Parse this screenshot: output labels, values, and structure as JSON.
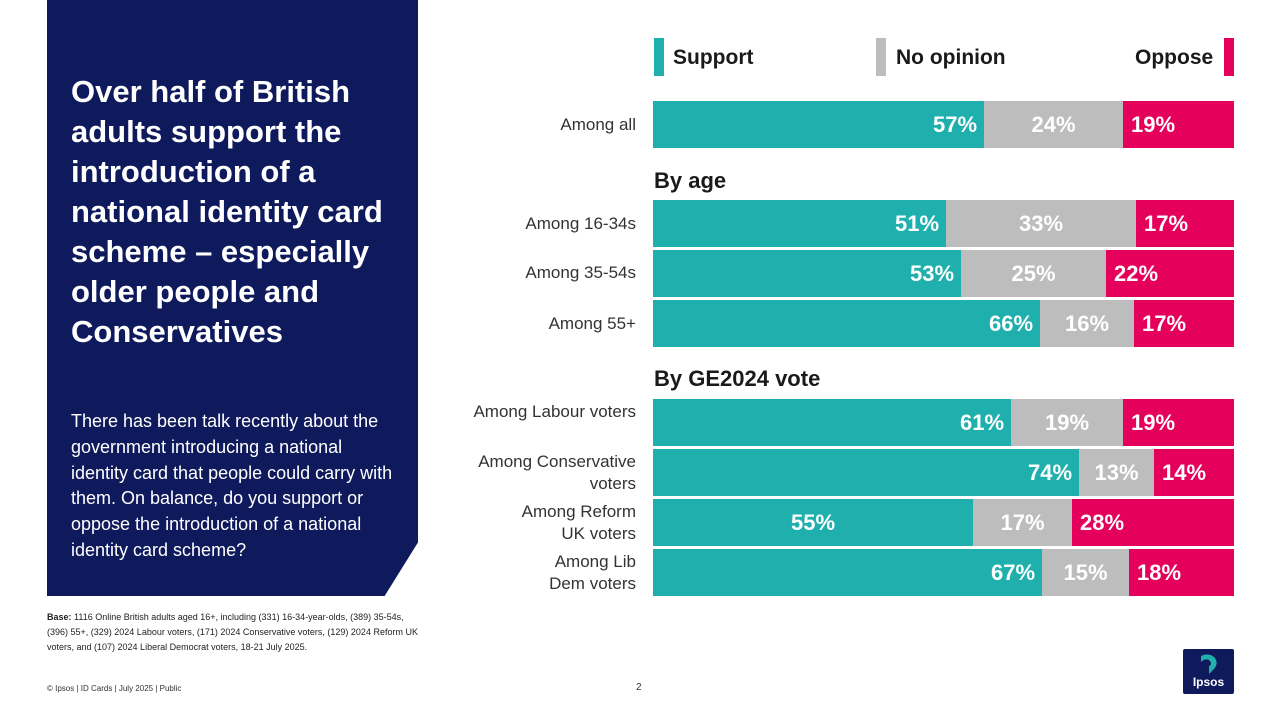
{
  "headline": "Over half of British adults support the introduction of a national identity card scheme – especially older people and Conservatives",
  "question": "There has been talk recently about the government introducing a national identity card that people could carry with them. On balance, do you support or oppose the introduction of a national identity card scheme?",
  "base": {
    "label": "Base:",
    "text": " 1116 Online British adults aged 16+, including (331) 16-34-year-olds, (389) 35-54s, (396) 55+, (329) 2024 Labour voters, (171) 2024 Conservative voters, (129) 2024 Reform UK voters, and (107) 2024 Liberal Democrat voters, 18-21 July 2025."
  },
  "footer": "© Ipsos | ID Cards | July 2025 | Public",
  "page_number": "2",
  "logo_text": "Ipsos",
  "colors": {
    "support": "#1fb0ae",
    "no_opinion": "#bdbdbd",
    "oppose": "#e5005b",
    "navy": "#0f1a5c"
  },
  "chart_data": {
    "type": "bar",
    "orientation": "horizontal",
    "stacked": true,
    "percent_labels": true,
    "series_names": [
      "Support",
      "No opinion",
      "Oppose"
    ],
    "legend": {
      "support": "Support",
      "no_opinion": "No opinion",
      "oppose": "Oppose"
    },
    "sections": [
      "By age",
      "By GE2024 vote"
    ],
    "rows": [
      {
        "label": "Among all",
        "support": 57,
        "no_opinion": 24,
        "oppose": 19
      },
      {
        "label": "Among 16-34s",
        "support": 51,
        "no_opinion": 33,
        "oppose": 17
      },
      {
        "label": "Among 35-54s",
        "support": 53,
        "no_opinion": 25,
        "oppose": 22
      },
      {
        "label": "Among 55+",
        "support": 66,
        "no_opinion": 16,
        "oppose": 17
      },
      {
        "label": "Among Labour voters",
        "support": 61,
        "no_opinion": 19,
        "oppose": 19
      },
      {
        "label": "Among Conservative voters",
        "support": 74,
        "no_opinion": 13,
        "oppose": 14
      },
      {
        "label": "Among Reform UK voters",
        "support": 55,
        "no_opinion": 17,
        "oppose": 28
      },
      {
        "label": "Among Lib Dem voters",
        "support": 67,
        "no_opinion": 15,
        "oppose": 18
      }
    ]
  }
}
